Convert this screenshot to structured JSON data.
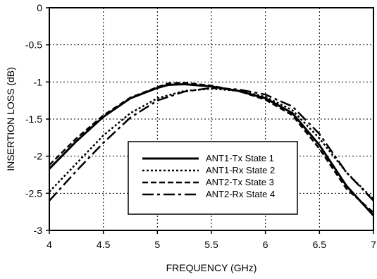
{
  "chart_data": {
    "type": "line",
    "xlabel": "FREQUENCY (GHz)",
    "ylabel": "INSERTION LOSS  (dB)",
    "xlim": [
      4,
      7
    ],
    "ylim": [
      -3,
      0
    ],
    "x_ticks": [
      "4",
      "4.5",
      "5",
      "5.5",
      "6",
      "6.5",
      "7"
    ],
    "y_ticks": [
      "0",
      "-0.5",
      "-1",
      "-1.5",
      "-2",
      "-2.5",
      "-3"
    ],
    "grid": true,
    "legend_position": "bottom-center",
    "series": [
      {
        "name": "ANT1-Tx State 1",
        "style": "solid",
        "x": [
          4.0,
          4.25,
          4.5,
          4.75,
          5.0,
          5.1,
          5.25,
          5.5,
          5.75,
          6.0,
          6.25,
          6.5,
          6.75,
          7.0
        ],
        "y": [
          -2.17,
          -1.8,
          -1.47,
          -1.22,
          -1.08,
          -1.04,
          -1.03,
          -1.06,
          -1.12,
          -1.22,
          -1.42,
          -1.85,
          -2.4,
          -2.8
        ]
      },
      {
        "name": "ANT1-Rx State 2",
        "style": "dotted",
        "x": [
          4.0,
          4.25,
          4.5,
          4.75,
          5.0,
          5.25,
          5.5,
          5.75,
          6.0,
          6.25,
          6.5,
          6.75,
          7.0
        ],
        "y": [
          -2.48,
          -2.1,
          -1.72,
          -1.42,
          -1.22,
          -1.12,
          -1.09,
          -1.12,
          -1.2,
          -1.38,
          -1.76,
          -2.22,
          -2.58
        ]
      },
      {
        "name": "ANT2-Tx State 3",
        "style": "dashed",
        "x": [
          4.0,
          4.25,
          4.5,
          4.75,
          5.0,
          5.1,
          5.25,
          5.5,
          5.75,
          6.0,
          6.25,
          6.5,
          6.75,
          7.0
        ],
        "y": [
          -2.12,
          -1.76,
          -1.45,
          -1.21,
          -1.07,
          -1.02,
          -1.01,
          -1.05,
          -1.12,
          -1.24,
          -1.45,
          -1.9,
          -2.44,
          -2.76
        ]
      },
      {
        "name": "ANT2-Rx State 4",
        "style": "longdash",
        "x": [
          4.0,
          4.25,
          4.5,
          4.75,
          5.0,
          5.25,
          5.5,
          5.75,
          6.0,
          6.25,
          6.5,
          6.75,
          7.0
        ],
        "y": [
          -2.6,
          -2.2,
          -1.82,
          -1.48,
          -1.25,
          -1.13,
          -1.08,
          -1.1,
          -1.17,
          -1.33,
          -1.7,
          -2.22,
          -2.6
        ]
      }
    ]
  }
}
